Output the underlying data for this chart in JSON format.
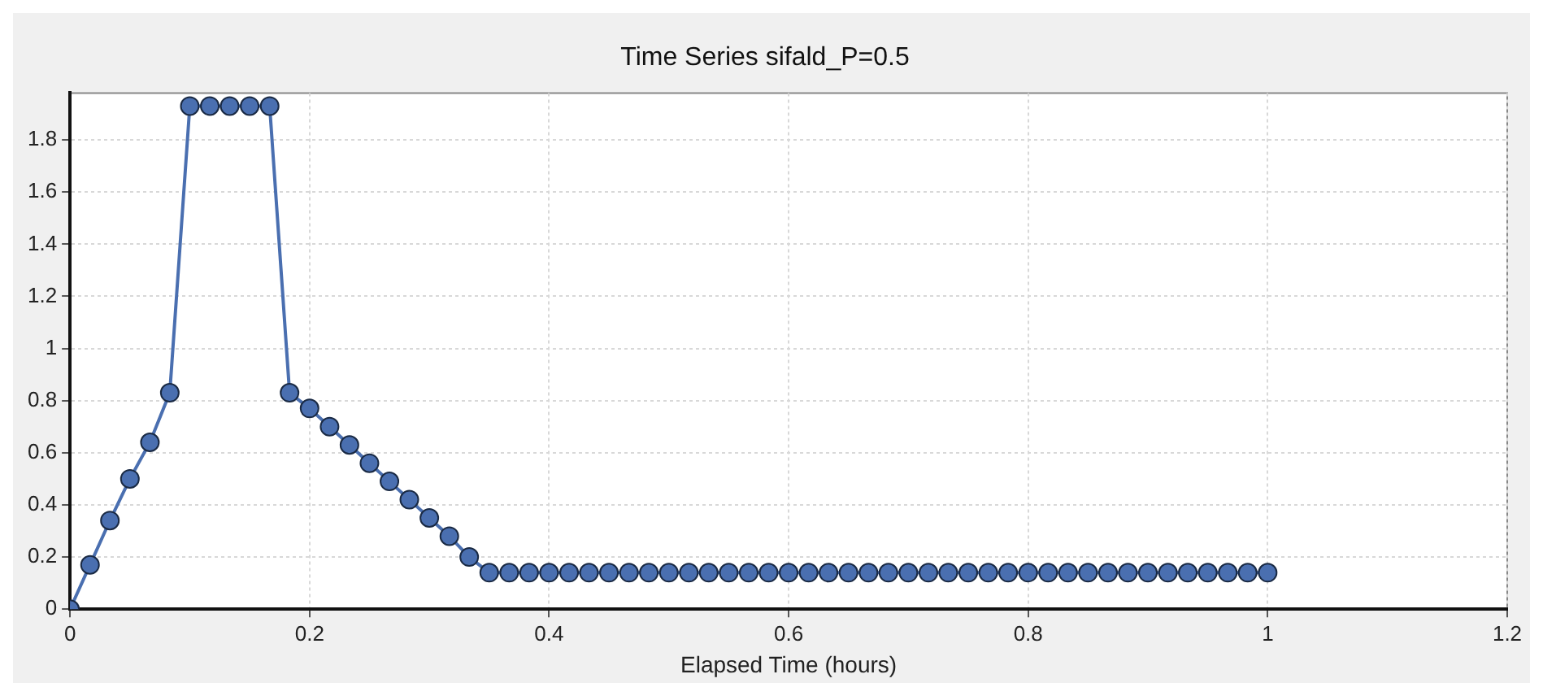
{
  "chart_data": {
    "type": "line",
    "title": "Time Series sifald_P=0.5",
    "xlabel": "Elapsed Time (hours)",
    "x": [
      0,
      0.0167,
      0.0333,
      0.05,
      0.0667,
      0.0833,
      0.1,
      0.1167,
      0.1333,
      0.15,
      0.1667,
      0.1833,
      0.2,
      0.2167,
      0.2333,
      0.25,
      0.2667,
      0.2833,
      0.3,
      0.3167,
      0.3333,
      0.35,
      0.3667,
      0.3833,
      0.4,
      0.4167,
      0.4333,
      0.45,
      0.4667,
      0.4833,
      0.5,
      0.5167,
      0.5333,
      0.55,
      0.5667,
      0.5833,
      0.6,
      0.6167,
      0.6333,
      0.65,
      0.6667,
      0.6833,
      0.7,
      0.7167,
      0.7333,
      0.75,
      0.7667,
      0.7833,
      0.8,
      0.8167,
      0.8333,
      0.85,
      0.8667,
      0.8833,
      0.9,
      0.9167,
      0.9333,
      0.95,
      0.9667,
      0.9833,
      1
    ],
    "series": [
      {
        "color": "#4a6fb0",
        "values": [
          0,
          0.17,
          0.34,
          0.5,
          0.64,
          0.83,
          1.93,
          1.93,
          1.93,
          1.93,
          1.93,
          0.83,
          0.77,
          0.7,
          0.63,
          0.56,
          0.49,
          0.42,
          0.35,
          0.28,
          0.2,
          0.14,
          0.14,
          0.14,
          0.14,
          0.14,
          0.14,
          0.14,
          0.14,
          0.14,
          0.14,
          0.14,
          0.14,
          0.14,
          0.14,
          0.14,
          0.14,
          0.14,
          0.14,
          0.14,
          0.14,
          0.14,
          0.14,
          0.14,
          0.14,
          0.14,
          0.14,
          0.14,
          0.14,
          0.14,
          0.14,
          0.14,
          0.14,
          0.14,
          0.14,
          0.14,
          0.14,
          0.14,
          0.14,
          0.14,
          0.14
        ]
      }
    ],
    "xlim": [
      0,
      1.2
    ],
    "xticks": [
      0,
      0.2,
      0.4,
      0.6,
      0.8,
      1,
      1.2
    ],
    "ylim": [
      0,
      1.98
    ],
    "yticks": [
      0,
      0.2,
      0.4,
      0.6,
      0.8,
      1,
      1.2,
      1.4,
      1.6,
      1.8
    ],
    "grid": true,
    "legend": false,
    "marker": "circle",
    "line_style": "solid"
  }
}
